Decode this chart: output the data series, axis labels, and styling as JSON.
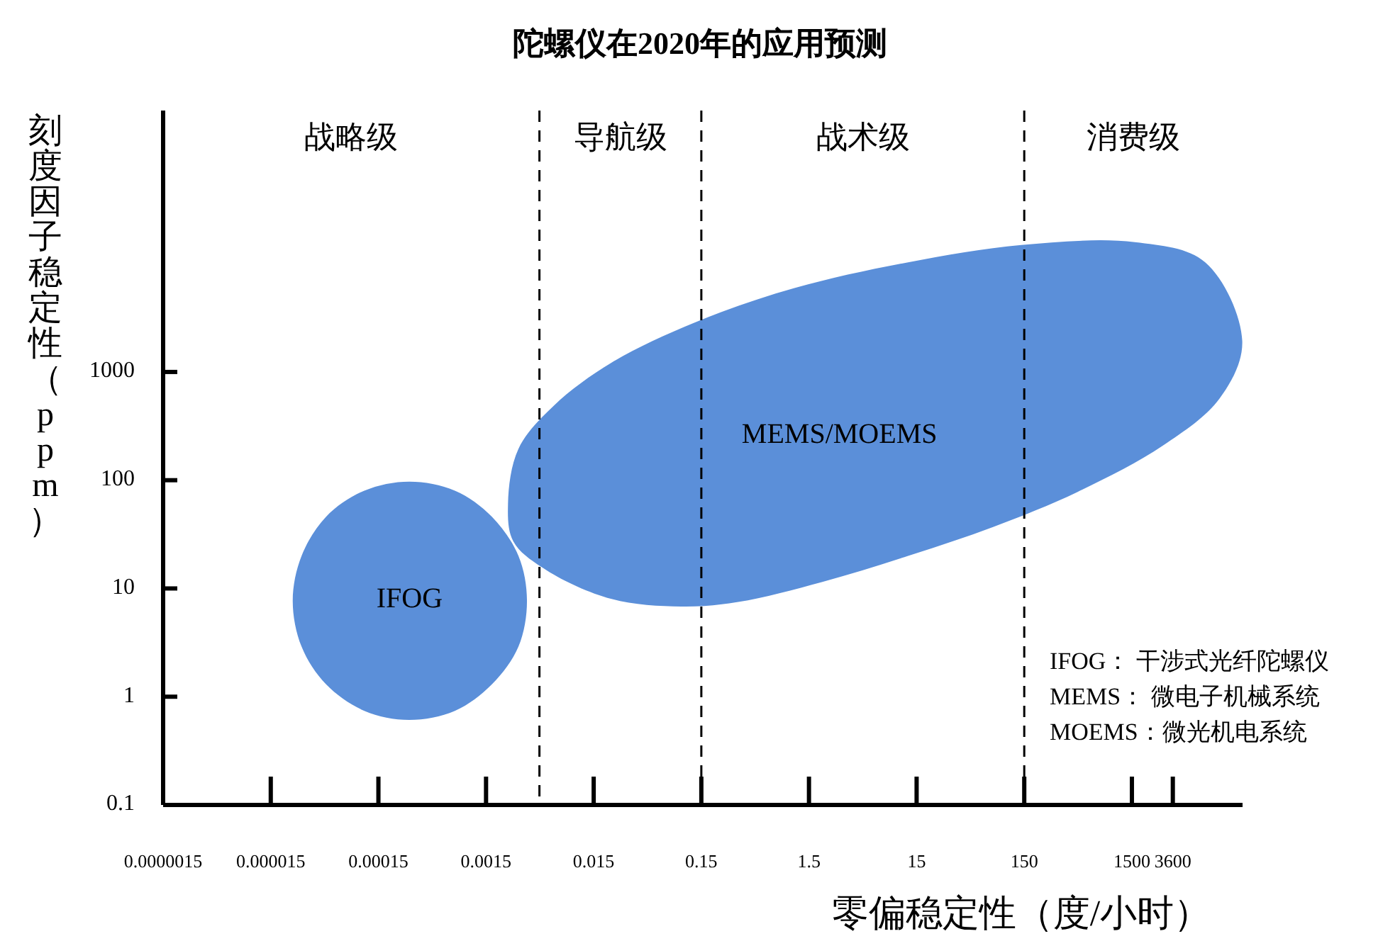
{
  "chart_data": {
    "type": "area",
    "title": "陀螺仪在2020年的应用预测",
    "xlabel": "零偏稳定性（度/小时）",
    "ylabel": "刻度因子稳定性（ppm）",
    "log": "xy",
    "xlim": [
      1.5e-06,
      16000
    ],
    "xticks": [
      {
        "value": 1.5e-06,
        "label": "0.0000015"
      },
      {
        "value": 1.5e-05,
        "label": "0.000015"
      },
      0.00015,
      0.0015,
      0.015,
      0.15,
      1.5,
      15,
      150,
      1500,
      3600
    ],
    "ylim": [
      0.1,
      260000
    ],
    "yticks": [
      0.1,
      1,
      10,
      100,
      1000
    ],
    "series": [
      {
        "name": "IFOG",
        "color": "#5b8fd9",
        "x": [
          0.0036,
          0.003,
          0.0017,
          0.00077,
          0.00029,
          0.000111,
          4.9e-05,
          2.9e-05,
          2.4e-05,
          2.9e-05,
          4.9e-05,
          0.000111,
          0.00029,
          0.00077,
          0.0017,
          0.003
        ],
        "values": [
          7.7,
          20,
          46,
          80,
          97,
          80,
          46,
          20,
          7.7,
          2.9,
          1.3,
          0.74,
          0.61,
          0.74,
          1.3,
          2.9
        ]
      },
      {
        "name": "MEMS/MOEMS",
        "color": "#5b8fd9",
        "x": [
          0.0024,
          0.003,
          0.0064,
          0.022,
          0.13,
          1.1,
          12.5,
          141,
          1600,
          7200,
          15900,
          9800,
          2900,
          470,
          77,
          12.5,
          2,
          0.33,
          0.098,
          0.022,
          0.0055,
          0.0027
        ],
        "values": [
          61,
          195,
          489,
          1220,
          2860,
          5950,
          10300,
          14900,
          15800,
          10300,
          1930,
          569,
          208,
          78,
          37,
          20,
          11.5,
          7.5,
          6.8,
          8,
          14.7,
          27
        ]
      }
    ],
    "ref_lines": [
      {
        "axis": "x",
        "value": 0.0047,
        "line_style": "dashed"
      },
      {
        "axis": "x",
        "value": 0.15,
        "line_style": "dashed"
      },
      {
        "axis": "x",
        "value": 150,
        "line_style": "dashed"
      }
    ],
    "annotations": [
      "战略级",
      "导航级",
      "战术级",
      "消费级",
      "IFOG： 干涉式光纤陀螺仪",
      "MEMS： 微电子机械系统",
      "MOEMS：微光机电系统"
    ]
  }
}
